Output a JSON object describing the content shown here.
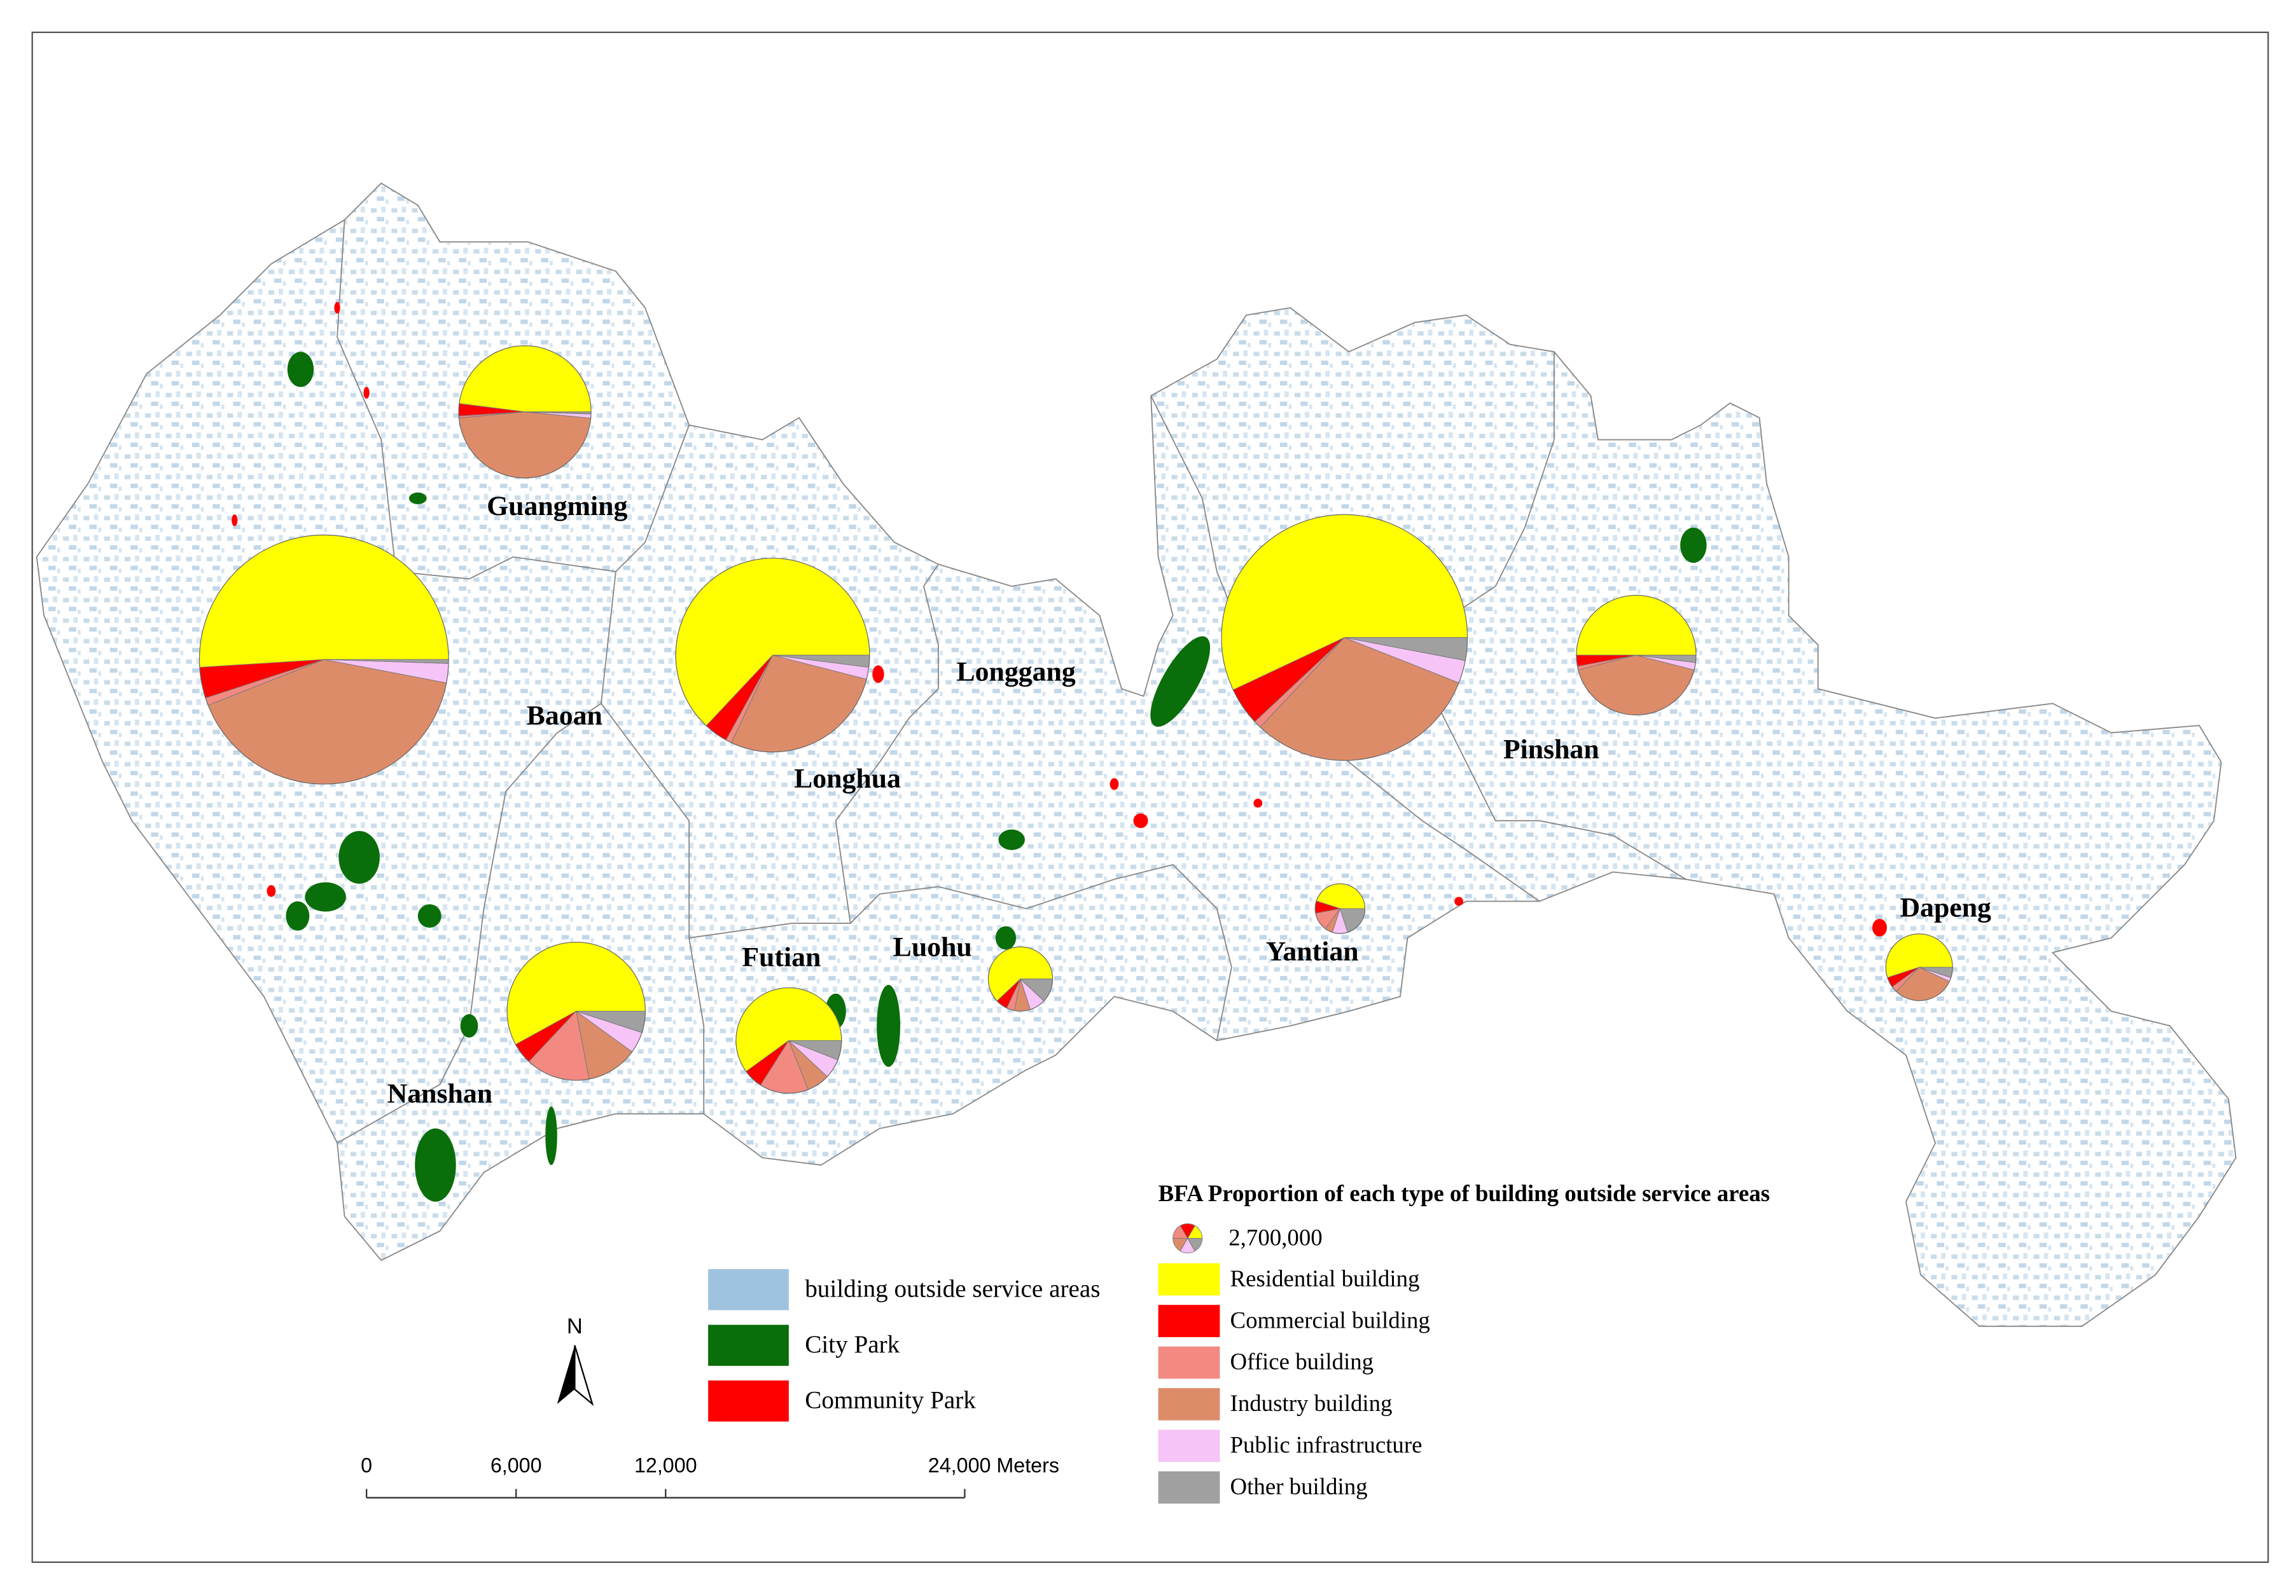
{
  "title": "BFA Proportion of each type of building outside service areas",
  "chart_data": {
    "type": "pie",
    "categories": [
      "Residential building",
      "Commercial building",
      "Office building",
      "Industry building",
      "Public infrastructure",
      "Other building"
    ],
    "colors": [
      "#ffff00",
      "#ff0000",
      "#f28a82",
      "#dd8c6a",
      "#f6c4f6",
      "#a0a0a0"
    ],
    "size_legend": {
      "value": 2700000,
      "label": "2,700,000"
    },
    "districts": [
      {
        "name": "Baoan",
        "total": 195000000,
        "values": [
          51,
          4,
          1,
          41,
          2.5,
          0.5
        ]
      },
      {
        "name": "Guangming",
        "total": 55000000,
        "values": [
          48,
          3,
          0.5,
          47,
          1,
          0.5
        ]
      },
      {
        "name": "Longhua",
        "total": 118000000,
        "values": [
          63,
          4,
          1,
          28,
          2,
          2
        ]
      },
      {
        "name": "Longgang",
        "total": 190000000,
        "values": [
          57,
          5,
          1,
          31,
          3,
          3
        ]
      },
      {
        "name": "Pinshan",
        "total": 45000000,
        "values": [
          50,
          3,
          1,
          42,
          2,
          2
        ]
      },
      {
        "name": "Nanshan",
        "total": 60000000,
        "values": [
          58,
          5,
          15,
          12,
          5,
          5
        ]
      },
      {
        "name": "Futian",
        "total": 35000000,
        "values": [
          60,
          6,
          15,
          7,
          6,
          6
        ]
      },
      {
        "name": "Luohu",
        "total": 13000000,
        "values": [
          62,
          6,
          4,
          8,
          8,
          12
        ]
      },
      {
        "name": "Yantian",
        "total": 7800000,
        "values": [
          45,
          8,
          12,
          5,
          10,
          20
        ]
      },
      {
        "name": "Dapeng",
        "total": 14000000,
        "values": [
          55,
          5,
          3,
          30,
          2,
          5
        ]
      }
    ]
  },
  "map_legend": [
    {
      "label": "building outside service areas",
      "color": "#9fc3de"
    },
    {
      "label": "City Park",
      "color": "#0a6e0a"
    },
    {
      "label": "Community Park",
      "color": "#ff0000"
    }
  ],
  "north": "N",
  "scale_bar": {
    "ticks": [
      0,
      {
        "value": 6000,
        "label": "6,000"
      },
      {
        "value": 12000,
        "label": "12,000"
      },
      {
        "value": 24000,
        "label": "24,000 Meters"
      }
    ]
  }
}
